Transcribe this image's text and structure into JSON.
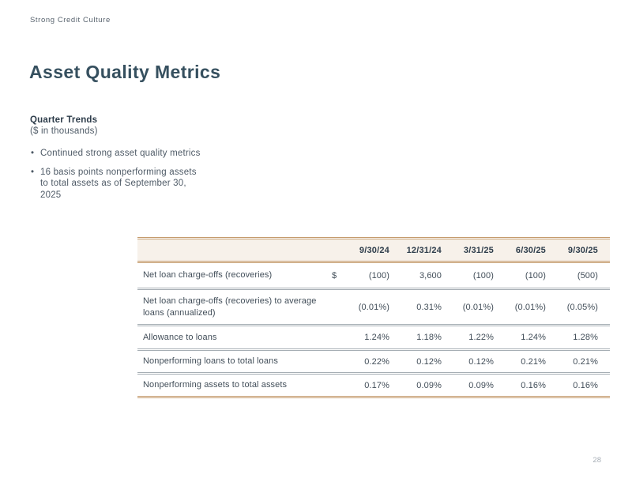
{
  "slide": {
    "eyebrow": "Strong Credit Culture",
    "title": "Asset Quality Metrics",
    "page_number": "28"
  },
  "panel": {
    "heading": "Quarter Trends",
    "subheading": "($ in thousands)",
    "bullets": [
      "Continued strong asset quality metrics",
      "16 basis points nonperforming assets to total assets as of September 30, 2025"
    ]
  },
  "table": {
    "columns": [
      "9/30/24",
      "12/31/24",
      "3/31/25",
      "6/30/25",
      "9/30/25"
    ],
    "rows": [
      {
        "label": "Net loan charge-offs (recoveries)",
        "prefix": "$",
        "values": [
          "(100)",
          "3,600",
          "(100)",
          "(100)",
          "(500)"
        ]
      },
      {
        "label": "Net loan charge-offs (recoveries) to average loans (annualized)",
        "prefix": "",
        "values": [
          "(0.01%)",
          "0.31%",
          "(0.01%)",
          "(0.01%)",
          "(0.05%)"
        ]
      },
      {
        "label": "Allowance to loans",
        "prefix": "",
        "values": [
          "1.24%",
          "1.18%",
          "1.22%",
          "1.24%",
          "1.28%"
        ]
      },
      {
        "label": "Nonperforming loans to total loans",
        "prefix": "",
        "values": [
          "0.22%",
          "0.12%",
          "0.12%",
          "0.21%",
          "0.21%"
        ]
      },
      {
        "label": "Nonperforming assets to total assets",
        "prefix": "",
        "values": [
          "0.17%",
          "0.09%",
          "0.09%",
          "0.16%",
          "0.16%"
        ]
      }
    ]
  },
  "colors": {
    "accent_tan": "#c49a6b",
    "header_bg": "#f7f1ea",
    "title_navy": "#36505f",
    "body_text": "#4e5a66",
    "divider_gray": "#a6aeb4"
  }
}
